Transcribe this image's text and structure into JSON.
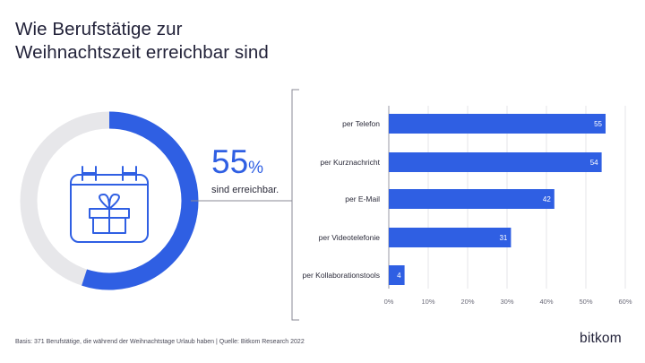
{
  "header": {
    "title_line1": "Wie Berufstätige zur",
    "title_line2": "Weihnachtszeit erreichbar sind"
  },
  "summary": {
    "percent_value": "55",
    "percent_sign": "%",
    "subtitle": "sind erreichbar.",
    "ring_fraction": 0.55
  },
  "chart_data": {
    "type": "bar",
    "orientation": "horizontal",
    "categories": [
      "per Telefon",
      "per Kurznachricht",
      "per E-Mail",
      "per Videotelefonie",
      "per Kollaborationstools"
    ],
    "values": [
      55,
      54,
      42,
      31,
      4
    ],
    "x_ticks": [
      "0%",
      "10%",
      "20%",
      "30%",
      "40%",
      "50%",
      "60%"
    ],
    "xlim": [
      0,
      60
    ],
    "title": "",
    "xlabel": "",
    "ylabel": "",
    "grid": true,
    "bar_color": "#2f5fe3"
  },
  "footer": {
    "note": "Basis: 371 Berufstätige, die während der Weihnachtstage Urlaub haben | Quelle: Bitkom Research 2022",
    "logo": "bitkom"
  },
  "colors": {
    "accent": "#2f5fe3",
    "ring_track": "#e7e7ea",
    "text": "#23233a"
  }
}
